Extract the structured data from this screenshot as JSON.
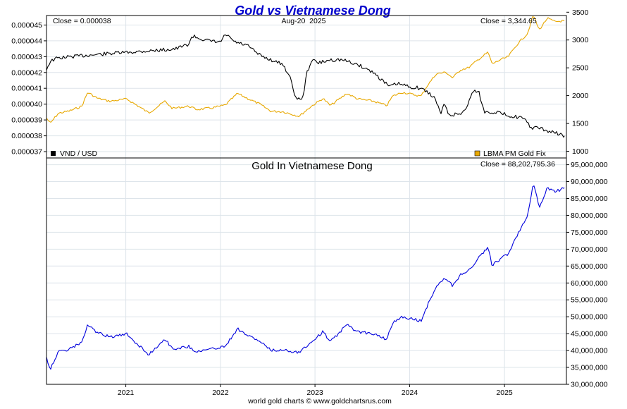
{
  "title": "Gold vs Vietnamese Dong",
  "footer": "world gold charts © www.goldchartsrus.com",
  "colors": {
    "title": "#0000cc",
    "vnd_usd": "#000000",
    "gold_usd": "#e8a800",
    "gold_vnd": "#0000dd",
    "grid": "#dde4ea",
    "frame": "#000000"
  },
  "chart_data": [
    {
      "type": "line",
      "panel": "top",
      "date_label": "Aug-20  2025",
      "left_close_label": "Close = 0.000038",
      "right_close_label": "Close = 3,344.65",
      "grid": true,
      "x_ticks": [
        "2021",
        "2022",
        "2023",
        "2024",
        "2025"
      ],
      "left_axis": {
        "range": [
          3.66e-05,
          4.56e-05
        ],
        "ticks": [
          "0.000037",
          "0.000038",
          "0.000039",
          "0.000040",
          "0.000041",
          "0.000042",
          "0.000043",
          "0.000044",
          "0.000045"
        ]
      },
      "right_axis": {
        "range": [
          880,
          3440
        ],
        "ticks": [
          "1000",
          "1500",
          "2000",
          "2500",
          "3000",
          "3500"
        ]
      },
      "series": [
        {
          "name": "VND / USD",
          "axis": "left",
          "legend_position": "bottom-left",
          "color": "#000000",
          "x": [
            "2020-03-01",
            "2020-03-15",
            "2020-04-10",
            "2020-06-01",
            "2020-08-15",
            "2020-11-01",
            "2021-02-01",
            "2021-05-01",
            "2021-07-15",
            "2021-09-01",
            "2021-09-15",
            "2021-11-15",
            "2022-01-01",
            "2022-01-20",
            "2022-03-01",
            "2022-04-15",
            "2022-06-01",
            "2022-07-15",
            "2022-09-01",
            "2022-10-01",
            "2022-10-20",
            "2022-11-15",
            "2022-12-01",
            "2022-12-20",
            "2023-01-15",
            "2023-03-01",
            "2023-04-15",
            "2023-06-15",
            "2023-08-15",
            "2023-10-15",
            "2023-11-15",
            "2024-01-01",
            "2024-02-15",
            "2024-04-01",
            "2024-04-15",
            "2024-05-01",
            "2024-05-10",
            "2024-06-01",
            "2024-07-15",
            "2024-08-10",
            "2024-09-01",
            "2024-09-25",
            "2024-10-15",
            "2024-11-01",
            "2024-12-01",
            "2025-01-15",
            "2025-02-15",
            "2025-03-15",
            "2025-04-15",
            "2025-05-15",
            "2025-06-15",
            "2025-07-15",
            "2025-08-20"
          ],
          "values": [
            4.22e-05,
            4.27e-05,
            4.29e-05,
            4.3e-05,
            4.31e-05,
            4.32e-05,
            4.33e-05,
            4.34e-05,
            4.35e-05,
            4.38e-05,
            4.43e-05,
            4.4e-05,
            4.39e-05,
            4.44e-05,
            4.39e-05,
            4.37e-05,
            4.31e-05,
            4.28e-05,
            4.25e-05,
            4.15e-05,
            4.03e-05,
            4.04e-05,
            4.2e-05,
            4.28e-05,
            4.26e-05,
            4.28e-05,
            4.28e-05,
            4.25e-05,
            4.2e-05,
            4.11e-05,
            4.13e-05,
            4.11e-05,
            4.1e-05,
            4.05e-05,
            4.01e-05,
            3.93e-05,
            4.01e-05,
            3.93e-05,
            3.94e-05,
            3.98e-05,
            4.09e-05,
            4.07e-05,
            3.95e-05,
            3.95e-05,
            3.95e-05,
            3.93e-05,
            3.92e-05,
            3.91e-05,
            3.85e-05,
            3.85e-05,
            3.83e-05,
            3.82e-05,
            3.8e-05
          ]
        },
        {
          "name": "LBMA PM Gold Fix",
          "axis": "right",
          "legend_position": "bottom-right",
          "color": "#e8a800",
          "x": [
            "2020-03-01",
            "2020-03-15",
            "2020-04-15",
            "2020-06-01",
            "2020-07-15",
            "2020-08-07",
            "2020-09-15",
            "2020-11-01",
            "2021-01-05",
            "2021-03-31",
            "2021-06-01",
            "2021-06-30",
            "2021-09-01",
            "2021-10-01",
            "2021-12-01",
            "2022-01-20",
            "2022-03-08",
            "2022-04-15",
            "2022-06-01",
            "2022-07-15",
            "2022-09-01",
            "2022-11-01",
            "2022-12-15",
            "2023-02-01",
            "2023-03-01",
            "2023-05-04",
            "2023-06-15",
            "2023-08-15",
            "2023-10-05",
            "2023-10-27",
            "2023-12-04",
            "2024-02-14",
            "2024-03-08",
            "2024-04-12",
            "2024-05-20",
            "2024-06-15",
            "2024-07-17",
            "2024-08-15",
            "2024-09-25",
            "2024-10-30",
            "2024-11-14",
            "2024-12-15",
            "2025-01-15",
            "2025-02-24",
            "2025-03-31",
            "2025-04-22",
            "2025-05-15",
            "2025-06-15",
            "2025-07-15",
            "2025-08-20"
          ],
          "values": [
            1600,
            1500,
            1680,
            1730,
            1810,
            2060,
            1950,
            1900,
            1940,
            1690,
            1900,
            1770,
            1810,
            1750,
            1780,
            1830,
            2040,
            1950,
            1850,
            1720,
            1710,
            1630,
            1800,
            1950,
            1820,
            2040,
            1940,
            1900,
            1820,
            1990,
            2060,
            1990,
            2170,
            2390,
            2420,
            2320,
            2470,
            2500,
            2660,
            2780,
            2570,
            2640,
            2700,
            2950,
            3115,
            3450,
            3180,
            3390,
            3330,
            3344.65
          ]
        }
      ]
    },
    {
      "type": "line",
      "panel": "bottom",
      "title": "Gold In Vietnamese Dong",
      "close_label": "Close = 88,202,795.36",
      "grid": true,
      "x_ticks": [
        "2021",
        "2022",
        "2023",
        "2024",
        "2025"
      ],
      "y_axis": {
        "range": [
          30000000,
          97000000
        ],
        "ticks": [
          "30,000,000",
          "35,000,000",
          "40,000,000",
          "45,000,000",
          "50,000,000",
          "55,000,000",
          "60,000,000",
          "65,000,000",
          "70,000,000",
          "75,000,000",
          "80,000,000",
          "85,000,000",
          "90,000,000",
          "95,000,000"
        ]
      },
      "series": [
        {
          "name": "Gold In Vietnamese Dong",
          "color": "#0000dd",
          "x": [
            "2020-03-01",
            "2020-03-15",
            "2020-04-15",
            "2020-06-01",
            "2020-07-15",
            "2020-08-07",
            "2020-09-15",
            "2020-11-01",
            "2021-01-05",
            "2021-03-31",
            "2021-06-01",
            "2021-06-30",
            "2021-09-01",
            "2021-10-01",
            "2021-12-01",
            "2022-01-20",
            "2022-03-08",
            "2022-04-15",
            "2022-06-01",
            "2022-07-15",
            "2022-09-01",
            "2022-11-01",
            "2022-12-15",
            "2023-02-01",
            "2023-03-01",
            "2023-05-04",
            "2023-06-15",
            "2023-08-15",
            "2023-10-05",
            "2023-10-27",
            "2023-12-04",
            "2024-02-14",
            "2024-03-08",
            "2024-04-12",
            "2024-05-20",
            "2024-06-15",
            "2024-07-17",
            "2024-08-15",
            "2024-09-25",
            "2024-10-30",
            "2024-11-14",
            "2024-12-15",
            "2025-01-15",
            "2025-02-24",
            "2025-03-31",
            "2025-04-22",
            "2025-05-15",
            "2025-06-15",
            "2025-07-15",
            "2025-08-20"
          ],
          "values": [
            38000000,
            34500000,
            39500000,
            40500000,
            42500000,
            47500000,
            45200000,
            44000000,
            44800000,
            38800000,
            43500000,
            40500000,
            41200000,
            39700000,
            40500000,
            41300000,
            46500000,
            44500000,
            42800000,
            40000000,
            40200000,
            39500000,
            42300000,
            45600000,
            42600000,
            47600000,
            45500000,
            45000000,
            43200000,
            48200000,
            50000000,
            48700000,
            53000000,
            59000000,
            61500000,
            59000000,
            62700000,
            63500000,
            67600000,
            70500000,
            65200000,
            67000000,
            68600000,
            75000000,
            80000000,
            89500000,
            82500000,
            88000000,
            86900000,
            88202795.36
          ]
        }
      ]
    }
  ]
}
